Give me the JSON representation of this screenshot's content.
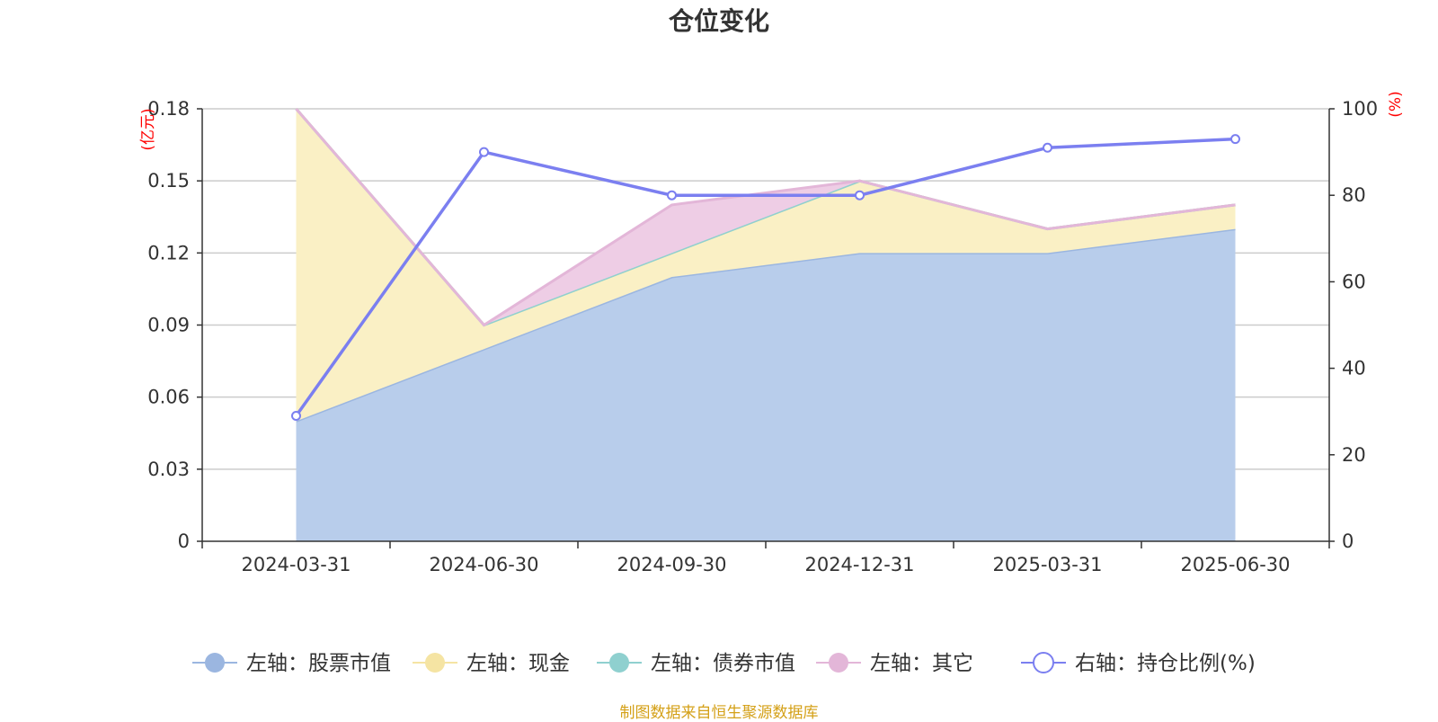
{
  "title": "仓位变化",
  "source_note": "制图数据来自恒生聚源数据库",
  "chart_data": {
    "type": "area",
    "title": "仓位变化",
    "categories": [
      "2024-03-31",
      "2024-06-30",
      "2024-09-30",
      "2024-12-31",
      "2025-03-31",
      "2025-06-30"
    ],
    "left_axis": {
      "unit": "(亿元)",
      "ylim": [
        0,
        0.18
      ],
      "ticks": [
        "0",
        "0.03",
        "0.06",
        "0.09",
        "0.12",
        "0.15",
        "0.18"
      ]
    },
    "right_axis": {
      "unit": "(%)",
      "ylim": [
        0,
        100
      ],
      "ticks": [
        "0",
        "20",
        "40",
        "60",
        "80",
        "100"
      ]
    },
    "stacked": true,
    "grid": true,
    "legend_position": "bottom",
    "series": [
      {
        "name": "左轴：股票市值",
        "axis": "left",
        "type": "area",
        "values": [
          0.05,
          0.08,
          0.11,
          0.12,
          0.12,
          0.13
        ],
        "line_color": "#9bb6e0",
        "fill_color": "#b8cdeb"
      },
      {
        "name": "左轴：现金",
        "axis": "left",
        "type": "area",
        "values": [
          0.13,
          0.01,
          0.01,
          0.03,
          0.01,
          0.01
        ],
        "line_color": "#f5e4a3",
        "fill_color": "#faf0c5"
      },
      {
        "name": "左轴：债券市值",
        "axis": "left",
        "type": "area",
        "values": [
          0,
          0,
          0,
          0,
          0,
          0
        ],
        "line_color": "#8fd0cf",
        "fill_color": "#c9ece9"
      },
      {
        "name": "左轴：其它",
        "axis": "left",
        "type": "area",
        "values": [
          0,
          0,
          0.02,
          0,
          0,
          0
        ],
        "line_color": "#e3b6d8",
        "fill_color": "#eecde5"
      },
      {
        "name": "右轴：持仓比例(%)",
        "axis": "right",
        "type": "line",
        "values": [
          29,
          90,
          80,
          80,
          91,
          93
        ],
        "line_color": "#7b7ff0"
      }
    ]
  }
}
